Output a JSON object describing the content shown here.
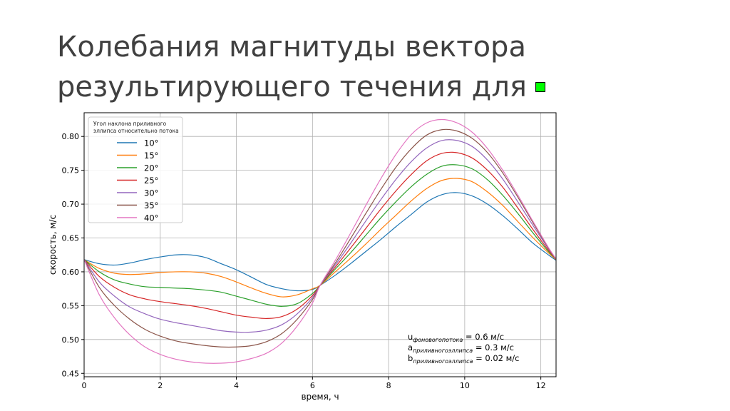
{
  "slide": {
    "title_line1": "Колебания магнитуды вектора",
    "title_line2": "результирующего течения для",
    "marker_color": "#00ff00"
  },
  "chart_data": {
    "type": "line",
    "xlabel": "время, ч",
    "ylabel": "скорость, м/с",
    "xlim": [
      0,
      12.4
    ],
    "ylim": [
      0.445,
      0.835
    ],
    "xticks": [
      0,
      2,
      4,
      6,
      8,
      10,
      12
    ],
    "yticks": [
      0.45,
      0.5,
      0.55,
      0.6,
      0.65,
      0.7,
      0.75,
      0.8
    ],
    "ytick_labels": [
      "0.45",
      "0.50",
      "0.55",
      "0.60",
      "0.65",
      "0.70",
      "0.75",
      "0.80"
    ],
    "grid": true,
    "legend": {
      "title_line1": "Угол наклона приливного",
      "title_line2": "эллипса относительно потока",
      "placement": "top-left"
    },
    "x": [
      0,
      0.4,
      0.8,
      1.2,
      1.6,
      2.0,
      2.4,
      2.8,
      3.2,
      3.6,
      4.0,
      4.4,
      4.8,
      5.2,
      5.6,
      6.0,
      6.2,
      6.6,
      7.0,
      7.4,
      7.8,
      8.2,
      8.6,
      9.0,
      9.4,
      9.8,
      10.2,
      10.6,
      11.0,
      11.4,
      11.8,
      12.2,
      12.4
    ],
    "series": [
      {
        "name": "10°",
        "color": "#1f77b4",
        "values": [
          0.618,
          0.612,
          0.61,
          0.613,
          0.618,
          0.622,
          0.625,
          0.625,
          0.621,
          0.612,
          0.603,
          0.592,
          0.581,
          0.575,
          0.572,
          0.574,
          0.58,
          0.595,
          0.612,
          0.63,
          0.648,
          0.667,
          0.685,
          0.703,
          0.714,
          0.717,
          0.712,
          0.7,
          0.683,
          0.663,
          0.642,
          0.625,
          0.617
        ]
      },
      {
        "name": "15°",
        "color": "#ff7f0e",
        "values": [
          0.618,
          0.605,
          0.598,
          0.596,
          0.597,
          0.599,
          0.6,
          0.6,
          0.598,
          0.593,
          0.585,
          0.576,
          0.568,
          0.563,
          0.566,
          0.575,
          0.58,
          0.6,
          0.62,
          0.641,
          0.663,
          0.684,
          0.705,
          0.723,
          0.735,
          0.738,
          0.733,
          0.718,
          0.698,
          0.674,
          0.65,
          0.628,
          0.618
        ]
      },
      {
        "name": "20°",
        "color": "#2ca02c",
        "values": [
          0.618,
          0.6,
          0.588,
          0.582,
          0.578,
          0.577,
          0.576,
          0.575,
          0.573,
          0.57,
          0.564,
          0.558,
          0.552,
          0.549,
          0.553,
          0.568,
          0.58,
          0.604,
          0.628,
          0.654,
          0.68,
          0.704,
          0.726,
          0.744,
          0.756,
          0.758,
          0.752,
          0.736,
          0.713,
          0.686,
          0.657,
          0.63,
          0.619
        ]
      },
      {
        "name": "25°",
        "color": "#d62728",
        "values": [
          0.618,
          0.593,
          0.577,
          0.566,
          0.56,
          0.556,
          0.553,
          0.55,
          0.546,
          0.541,
          0.536,
          0.533,
          0.531,
          0.534,
          0.545,
          0.565,
          0.58,
          0.607,
          0.635,
          0.664,
          0.693,
          0.72,
          0.744,
          0.764,
          0.775,
          0.776,
          0.768,
          0.75,
          0.725,
          0.694,
          0.662,
          0.632,
          0.619
        ]
      },
      {
        "name": "30°",
        "color": "#9467bd",
        "values": [
          0.618,
          0.585,
          0.564,
          0.548,
          0.538,
          0.53,
          0.525,
          0.521,
          0.517,
          0.513,
          0.511,
          0.511,
          0.514,
          0.522,
          0.538,
          0.562,
          0.58,
          0.61,
          0.642,
          0.675,
          0.707,
          0.737,
          0.763,
          0.783,
          0.794,
          0.794,
          0.785,
          0.765,
          0.737,
          0.703,
          0.668,
          0.634,
          0.619
        ]
      },
      {
        "name": "35°",
        "color": "#8c564b",
        "values": [
          0.618,
          0.577,
          0.55,
          0.53,
          0.515,
          0.505,
          0.498,
          0.494,
          0.491,
          0.489,
          0.489,
          0.491,
          0.497,
          0.509,
          0.53,
          0.559,
          0.58,
          0.613,
          0.649,
          0.686,
          0.722,
          0.755,
          0.782,
          0.802,
          0.81,
          0.808,
          0.797,
          0.776,
          0.746,
          0.71,
          0.672,
          0.635,
          0.619
        ]
      },
      {
        "name": "40°",
        "color": "#e377c2",
        "values": [
          0.618,
          0.566,
          0.532,
          0.507,
          0.489,
          0.478,
          0.471,
          0.467,
          0.465,
          0.465,
          0.467,
          0.472,
          0.48,
          0.495,
          0.52,
          0.554,
          0.58,
          0.617,
          0.657,
          0.698,
          0.738,
          0.774,
          0.803,
          0.82,
          0.825,
          0.82,
          0.806,
          0.782,
          0.75,
          0.713,
          0.674,
          0.636,
          0.619
        ]
      }
    ],
    "annotations": [
      {
        "main": "u",
        "sub": "фоновогопотока",
        "rest": " =  0.6 м/с"
      },
      {
        "main": "a",
        "sub": "приливногоэллипса",
        "rest": " = 0.3 м/с"
      },
      {
        "main": "b",
        "sub": "приливногоэллипса",
        "rest": " = 0.02 м/с"
      }
    ]
  }
}
